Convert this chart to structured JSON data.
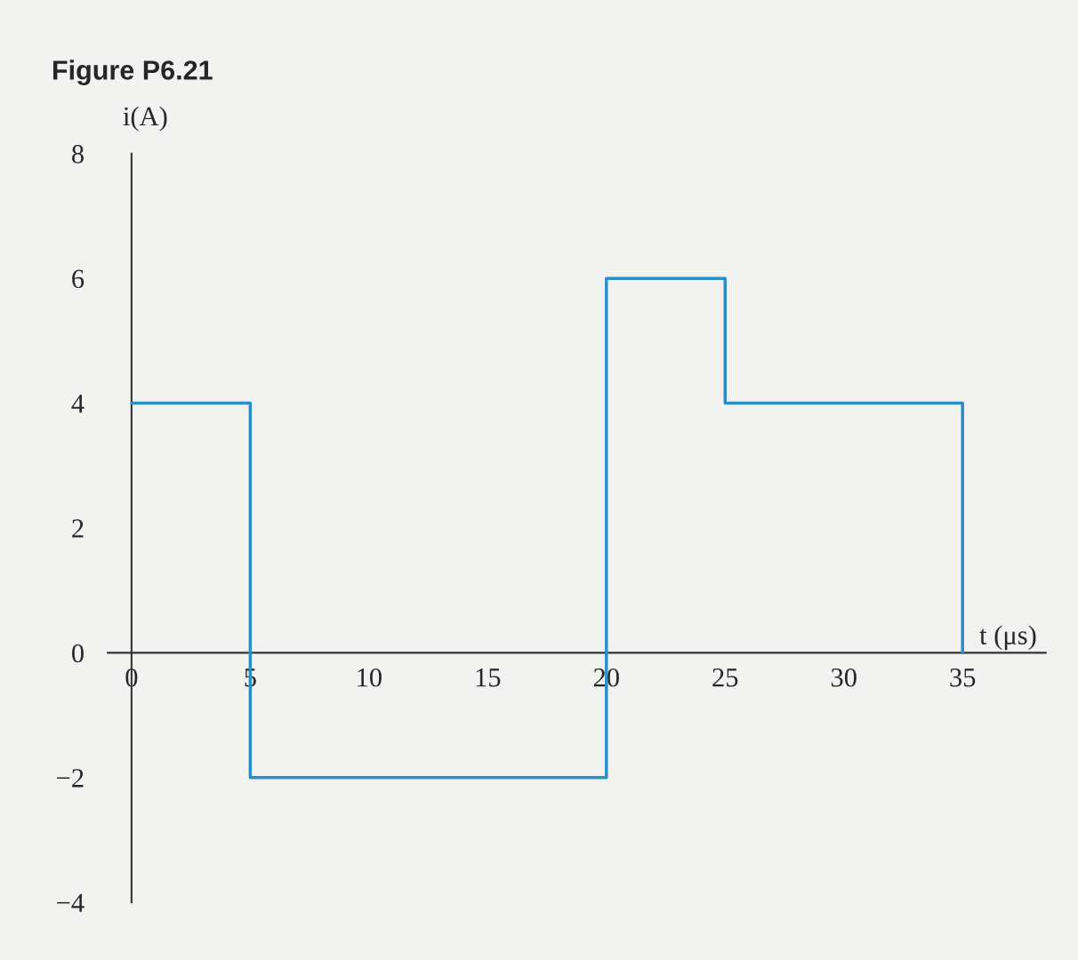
{
  "chart_data": {
    "type": "step",
    "title": "Figure P6.21",
    "xlabel": "t (μs)",
    "ylabel": "i(A)",
    "x": [
      0,
      5,
      20,
      25,
      35
    ],
    "series": [
      {
        "color": "#2a8fc8",
        "values": [
          4,
          -2,
          6,
          4,
          0
        ]
      }
    ],
    "xlim": [
      -1,
      38.5
    ],
    "ylim": [
      -4,
      8
    ],
    "xticks": [
      0,
      5,
      10,
      15,
      20,
      25,
      30,
      35
    ],
    "yticks": [
      -4,
      -2,
      0,
      2,
      4,
      6,
      8
    ],
    "grid": false,
    "legend": false,
    "line_style": "solid",
    "marker": "none"
  }
}
